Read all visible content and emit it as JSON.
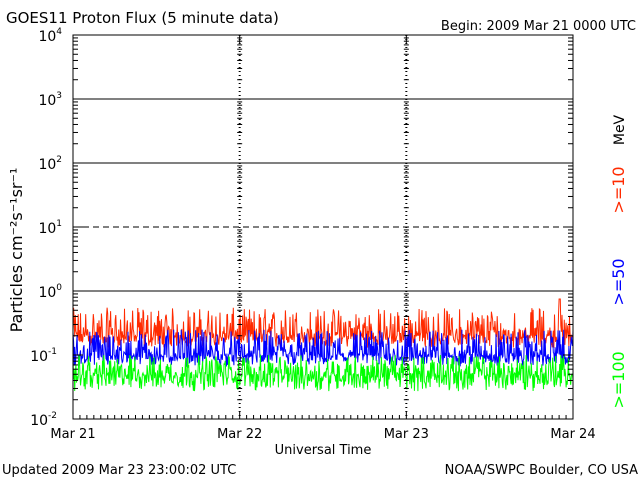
{
  "chart_data": {
    "type": "line",
    "title": "GOES11 Proton Flux (5 minute data)",
    "begin_label": "Begin: 2009 Mar 21 0000 UTC",
    "xlabel": "Universal Time",
    "ylabel": "Particles cm⁻²s⁻¹sr⁻¹",
    "y_scale": "log",
    "ylim": [
      0.01,
      10000
    ],
    "y_ticks": [
      {
        "value": 0.01,
        "base": "10",
        "exp": "-2"
      },
      {
        "value": 0.1,
        "base": "10",
        "exp": "-1"
      },
      {
        "value": 1,
        "base": "10",
        "exp": "0"
      },
      {
        "value": 10,
        "base": "10",
        "exp": "1"
      },
      {
        "value": 100,
        "base": "10",
        "exp": "2"
      },
      {
        "value": 1000,
        "base": "10",
        "exp": "3"
      },
      {
        "value": 10000,
        "base": "10",
        "exp": "4"
      }
    ],
    "x_ticks": [
      "Mar 21",
      "Mar 22",
      "Mar 23",
      "Mar 24"
    ],
    "xlim_days": [
      0,
      3
    ],
    "grid": {
      "solid_at": [
        1,
        100,
        1000
      ],
      "dashed_at": [
        10
      ],
      "day_dividers": "dashed"
    },
    "unit_label": "MeV",
    "series": [
      {
        "name": ">=10",
        "color": "#ff2a00",
        "typical": 0.2,
        "min": 0.13,
        "max": 0.55,
        "peak": 0.75
      },
      {
        "name": ">=50",
        "color": "#0000ff",
        "typical": 0.1,
        "min": 0.065,
        "max": 0.25
      },
      {
        "name": ">=100",
        "color": "#00ff00",
        "typical": 0.05,
        "min": 0.027,
        "max": 0.1
      }
    ]
  },
  "footer": {
    "updated": "Updated 2009 Mar 23 23:00:02 UTC",
    "source": "NOAA/SWPC Boulder, CO USA"
  }
}
